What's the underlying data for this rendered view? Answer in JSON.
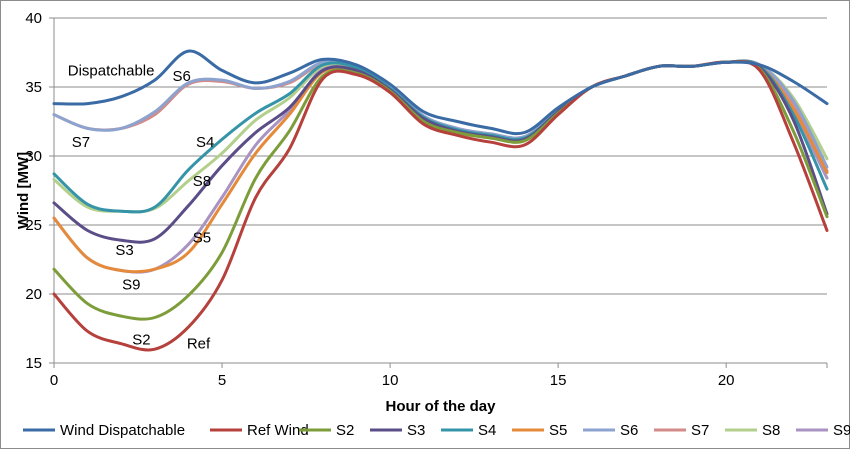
{
  "chart_data": {
    "type": "line",
    "xlabel": "Hour of the day",
    "ylabel": "Wind [MW]",
    "xlim": [
      0,
      23
    ],
    "ylim": [
      15,
      40
    ],
    "xticks": [
      0,
      5,
      10,
      15,
      20
    ],
    "yticks": [
      15,
      20,
      25,
      30,
      35,
      40
    ],
    "grid": "horizontal",
    "legend_position": "bottom",
    "x": [
      0,
      1,
      2,
      3,
      4,
      5,
      6,
      7,
      8,
      9,
      10,
      11,
      12,
      13,
      14,
      15,
      16,
      17,
      18,
      19,
      20,
      21,
      22,
      23
    ],
    "series": [
      {
        "name": "Wind Dispatchable",
        "color": "#3A6BA5",
        "values": [
          33.8,
          33.8,
          34.3,
          35.5,
          37.6,
          36.2,
          35.3,
          36.0,
          37.0,
          36.6,
          35.2,
          33.2,
          32.5,
          32.0,
          31.7,
          33.5,
          35.0,
          35.8,
          36.5,
          36.5,
          36.8,
          36.6,
          35.4,
          33.8
        ]
      },
      {
        "name": "Ref Wind",
        "color": "#B5403C",
        "values": [
          20.0,
          17.3,
          16.4,
          16.0,
          17.6,
          21.0,
          27.0,
          30.5,
          35.6,
          35.9,
          34.6,
          32.3,
          31.5,
          31.0,
          30.8,
          33.0,
          35.0,
          35.8,
          36.5,
          36.5,
          36.8,
          36.2,
          31.0,
          24.6
        ]
      },
      {
        "name": "S2",
        "color": "#7D9D3B",
        "values": [
          21.8,
          19.3,
          18.4,
          18.3,
          19.9,
          23.0,
          28.4,
          31.8,
          35.8,
          36.0,
          34.7,
          32.5,
          31.7,
          31.3,
          31.1,
          33.1,
          35.0,
          35.8,
          36.5,
          36.5,
          36.8,
          36.3,
          31.8,
          25.6
        ]
      },
      {
        "name": "S3",
        "color": "#5B4D87",
        "values": [
          26.6,
          24.6,
          23.9,
          24.0,
          26.4,
          29.3,
          31.7,
          33.5,
          36.2,
          36.2,
          34.8,
          32.7,
          31.8,
          31.4,
          31.2,
          33.2,
          35.0,
          35.8,
          36.5,
          36.5,
          36.8,
          36.4,
          32.6,
          25.8
        ]
      },
      {
        "name": "S4",
        "color": "#3594A8",
        "values": [
          28.7,
          26.5,
          26.0,
          26.3,
          29.0,
          31.2,
          33.1,
          34.5,
          36.6,
          36.4,
          34.9,
          32.8,
          31.9,
          31.5,
          31.3,
          33.2,
          35.0,
          35.8,
          36.5,
          36.5,
          36.8,
          36.5,
          33.0,
          27.6
        ]
      },
      {
        "name": "S5",
        "color": "#E58A3A",
        "values": [
          25.5,
          22.6,
          21.7,
          21.8,
          23.0,
          26.5,
          30.2,
          33.0,
          36.1,
          36.1,
          34.8,
          32.6,
          31.8,
          31.4,
          31.2,
          33.2,
          35.0,
          35.8,
          36.5,
          36.5,
          36.8,
          36.5,
          33.4,
          28.8
        ]
      },
      {
        "name": "S6",
        "color": "#8DA3CF",
        "values": [
          33.0,
          32.0,
          32.0,
          33.2,
          35.3,
          35.5,
          34.9,
          35.4,
          36.8,
          36.5,
          35.0,
          32.9,
          32.0,
          31.6,
          31.4,
          33.3,
          35.0,
          35.8,
          36.5,
          36.5,
          36.8,
          36.6,
          34.0,
          29.2
        ]
      },
      {
        "name": "S7",
        "color": "#D38B88",
        "values": [
          33.0,
          32.0,
          32.0,
          33.0,
          35.2,
          35.4,
          34.9,
          35.3,
          36.7,
          36.5,
          35.0,
          32.9,
          32.0,
          31.6,
          31.4,
          33.3,
          35.0,
          35.8,
          36.5,
          36.5,
          36.8,
          36.6,
          33.8,
          28.9
        ]
      },
      {
        "name": "S8",
        "color": "#B3CF8C",
        "values": [
          28.3,
          26.3,
          26.0,
          26.2,
          28.2,
          30.2,
          32.6,
          34.2,
          36.5,
          36.4,
          34.9,
          32.8,
          31.9,
          31.5,
          31.3,
          33.2,
          35.0,
          35.8,
          36.5,
          36.5,
          36.8,
          36.6,
          34.2,
          29.8
        ]
      },
      {
        "name": "S9",
        "color": "#A993C2",
        "values": [
          25.5,
          22.6,
          21.7,
          21.8,
          23.6,
          27.0,
          30.8,
          33.3,
          36.3,
          36.2,
          34.9,
          32.7,
          31.8,
          31.4,
          31.2,
          33.2,
          35.0,
          35.8,
          36.5,
          36.5,
          36.8,
          36.5,
          33.2,
          28.4
        ]
      }
    ],
    "annotations": [
      {
        "text": "Dispatchable",
        "x": 1.7,
        "y": 36.2
      },
      {
        "text": "S6",
        "x": 3.8,
        "y": 35.8
      },
      {
        "text": "S7",
        "x": 0.8,
        "y": 31.0
      },
      {
        "text": "S4",
        "x": 4.5,
        "y": 31.0
      },
      {
        "text": "S8",
        "x": 4.4,
        "y": 28.2
      },
      {
        "text": "S3",
        "x": 2.1,
        "y": 23.2
      },
      {
        "text": "S5",
        "x": 4.4,
        "y": 24.1
      },
      {
        "text": "S9",
        "x": 2.3,
        "y": 20.7
      },
      {
        "text": "S2",
        "x": 2.6,
        "y": 16.7
      },
      {
        "text": "Ref",
        "x": 4.3,
        "y": 16.4
      }
    ]
  }
}
